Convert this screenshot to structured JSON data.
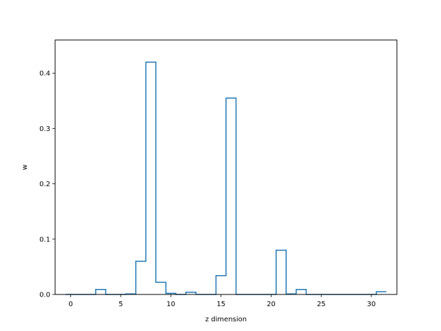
{
  "chart_data": {
    "type": "line",
    "style": "step",
    "title": "",
    "xlabel": "z dimension",
    "ylabel": "w",
    "xlim": [
      -1.55,
      32.55
    ],
    "ylim": [
      0,
      0.46
    ],
    "xticks": [
      0,
      5,
      10,
      15,
      20,
      25,
      30
    ],
    "yticks": [
      0.0,
      0.1,
      0.2,
      0.3,
      0.4
    ],
    "ytick_labels": [
      "0.0",
      "0.1",
      "0.2",
      "0.3",
      "0.4"
    ],
    "grid": false,
    "line_color": "#1f77b4",
    "series": [
      {
        "x": [
          0,
          1,
          2,
          3,
          4,
          5,
          6,
          7,
          8,
          9,
          10,
          11,
          12,
          13,
          14,
          15,
          16,
          17,
          18,
          19,
          20,
          21,
          22,
          23,
          24,
          25,
          26,
          27,
          28,
          29,
          30,
          31
        ],
        "values": [
          0.0,
          0.0,
          0.0,
          0.009,
          0.0,
          0.0,
          0.001,
          0.06,
          0.42,
          0.022,
          0.002,
          0.0,
          0.004,
          0.0,
          0.0,
          0.034,
          0.355,
          0.0,
          0.0,
          0.0,
          0.0,
          0.08,
          0.001,
          0.009,
          0.0,
          0.0,
          0.0,
          0.0,
          0.0,
          0.0,
          0.0,
          0.005
        ]
      }
    ]
  }
}
